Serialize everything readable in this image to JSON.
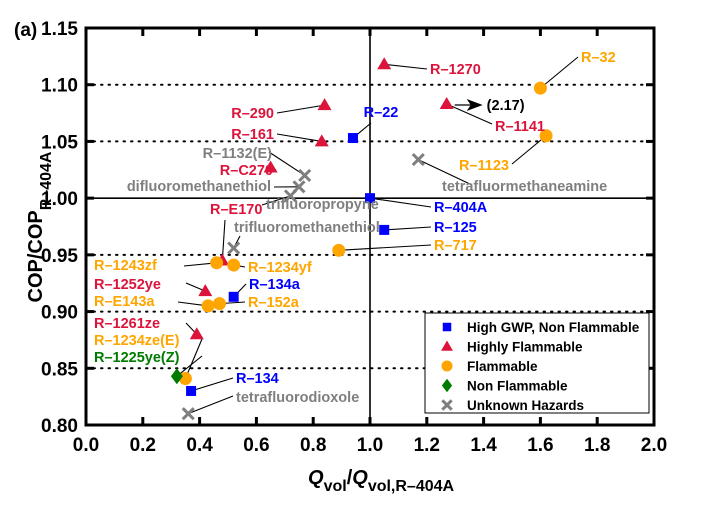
{
  "chart_data": {
    "type": "scatter",
    "panel_label": "(a)",
    "xlabel": {
      "main": "Q",
      "sub1": "vol",
      "slash": "/",
      "main2": "Q",
      "sub2": "vol,R–404A"
    },
    "ylabel": {
      "main": "COP/COP",
      "sub": "R–404A"
    },
    "xlim": [
      0.0,
      2.0
    ],
    "ylim": [
      0.8,
      1.15
    ],
    "xticks": [
      "0.0",
      "0.2",
      "0.4",
      "0.6",
      "0.8",
      "1.0",
      "1.2",
      "1.4",
      "1.6",
      "1.8",
      "2.0"
    ],
    "yticks": [
      "0.80",
      "0.85",
      "0.90",
      "0.95",
      "1.00",
      "1.05",
      "1.10",
      "1.15"
    ],
    "grid": "horizontal dotted",
    "reference_lines": {
      "x": 1.0,
      "y": 1.0
    },
    "categories": {
      "high_gwp": {
        "label": "High GWP, Non Flammable",
        "color": "#0000ff",
        "marker": "square"
      },
      "highly_flammable": {
        "label": "Highly Flammable",
        "color": "#dc143c",
        "marker": "triangle"
      },
      "flammable": {
        "label": "Flammable",
        "color": "#ffa500",
        "marker": "circle"
      },
      "non_flammable": {
        "label": "Non Flammable",
        "color": "#007a00",
        "marker": "diamond"
      },
      "unknown": {
        "label": "Unknown Hazards",
        "color": "#7f7f7f",
        "marker": "x"
      }
    },
    "legend_order": [
      "high_gwp",
      "highly_flammable",
      "flammable",
      "non_flammable",
      "unknown"
    ],
    "legend_position": "bottom-right",
    "points": [
      {
        "name": "R–1270",
        "cat": "highly_flammable",
        "x": 1.05,
        "y": 1.118
      },
      {
        "name": "R–32",
        "cat": "flammable",
        "x": 1.6,
        "y": 1.097
      },
      {
        "name": "R–1141",
        "cat": "highly_flammable",
        "x": 1.27,
        "y": 1.083,
        "offscale_note": "(2.17)"
      },
      {
        "name": "R–290",
        "cat": "highly_flammable",
        "x": 0.84,
        "y": 1.082
      },
      {
        "name": "R–22",
        "cat": "high_gwp",
        "x": 0.94,
        "y": 1.053
      },
      {
        "name": "R–161",
        "cat": "highly_flammable",
        "x": 0.83,
        "y": 1.05
      },
      {
        "name": "R–1123",
        "cat": "flammable",
        "x": 1.62,
        "y": 1.055
      },
      {
        "name": "R–1132(E)",
        "cat": "unknown",
        "x": 0.77,
        "y": 1.02
      },
      {
        "name": "R–C270",
        "cat": "highly_flammable",
        "x": 0.65,
        "y": 1.027
      },
      {
        "name": "difluoromethanethiol",
        "cat": "unknown",
        "x": 0.75,
        "y": 1.01
      },
      {
        "name": "trifluoropropyne",
        "cat": "unknown",
        "x": 0.72,
        "y": 1.002
      },
      {
        "name": "tetrafluormethaneamine",
        "cat": "unknown",
        "x": 1.17,
        "y": 1.034
      },
      {
        "name": "R–404A",
        "cat": "high_gwp",
        "x": 1.0,
        "y": 1.0
      },
      {
        "name": "R–125",
        "cat": "high_gwp",
        "x": 1.05,
        "y": 0.972
      },
      {
        "name": "R–717",
        "cat": "flammable",
        "x": 0.89,
        "y": 0.954
      },
      {
        "name": "R–E170",
        "cat": "highly_flammable",
        "x": 0.48,
        "y": 0.945
      },
      {
        "name": "trifluoromethanethiol",
        "cat": "unknown",
        "x": 0.52,
        "y": 0.956
      },
      {
        "name": "R–1243zf",
        "cat": "flammable",
        "x": 0.46,
        "y": 0.943
      },
      {
        "name": "R–1234yf",
        "cat": "flammable",
        "x": 0.52,
        "y": 0.941
      },
      {
        "name": "R–1252ye",
        "cat": "highly_flammable",
        "x": 0.42,
        "y": 0.918
      },
      {
        "name": "R–134a",
        "cat": "high_gwp",
        "x": 0.52,
        "y": 0.913
      },
      {
        "name": "R–E143a",
        "cat": "flammable",
        "x": 0.43,
        "y": 0.905
      },
      {
        "name": "R–152a",
        "cat": "flammable",
        "x": 0.47,
        "y": 0.907
      },
      {
        "name": "R–1261ze",
        "cat": "highly_flammable",
        "x": 0.39,
        "y": 0.88
      },
      {
        "name": "R–1234ze(E)",
        "cat": "flammable",
        "x": 0.35,
        "y": 0.841
      },
      {
        "name": "R–1225ye(Z)",
        "cat": "non_flammable",
        "x": 0.32,
        "y": 0.843
      },
      {
        "name": "R–134",
        "cat": "high_gwp",
        "x": 0.37,
        "y": 0.83
      },
      {
        "name": "tetrafluorodioxole",
        "cat": "unknown",
        "x": 0.36,
        "y": 0.81
      }
    ]
  }
}
